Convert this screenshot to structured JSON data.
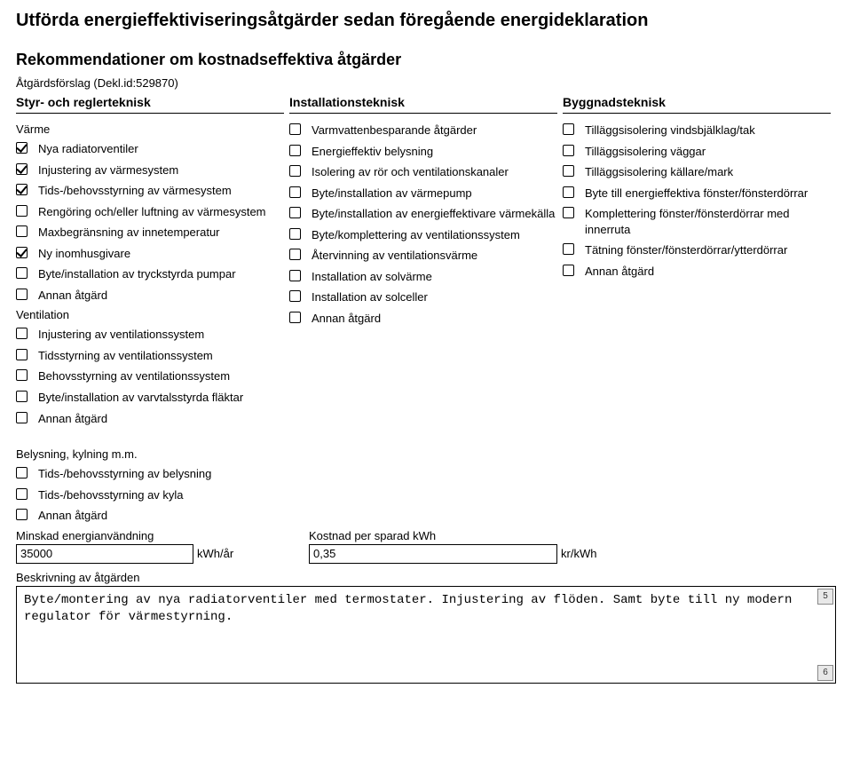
{
  "title": "Utförda energieffektiviseringsåtgärder sedan föregående energideklaration",
  "subtitle": "Rekommendationer om kostnadseffektiva åtgärder",
  "proposal_line": "Åtgärdsförslag (Dekl.id:529870)",
  "columns": {
    "col1": {
      "header": "Styr- och reglerteknisk",
      "groups": [
        {
          "heading": "Värme",
          "items": [
            {
              "label": "Nya radiatorventiler",
              "checked": true
            },
            {
              "label": "Injustering av värmesystem",
              "checked": true
            },
            {
              "label": "Tids-/behovsstyrning av värmesystem",
              "checked": true
            },
            {
              "label": "Rengöring och/eller luftning av värmesystem",
              "checked": false
            },
            {
              "label": "Maxbegränsning av innetemperatur",
              "checked": false
            },
            {
              "label": "Ny inomhusgivare",
              "checked": true
            },
            {
              "label": "Byte/installation av tryckstyrda pumpar",
              "checked": false
            },
            {
              "label": "Annan åtgärd",
              "checked": false
            }
          ]
        },
        {
          "heading": "Ventilation",
          "items": [
            {
              "label": "Injustering av ventilationssystem",
              "checked": false
            },
            {
              "label": "Tidsstyrning av ventilationssystem",
              "checked": false
            },
            {
              "label": "Behovsstyrning av ventilationssystem",
              "checked": false
            },
            {
              "label": "Byte/installation av varvtalsstyrda fläktar",
              "checked": false
            },
            {
              "label": "Annan åtgärd",
              "checked": false
            }
          ]
        }
      ]
    },
    "col2": {
      "header": "Installationsteknisk",
      "items": [
        {
          "label": "Varmvattenbesparande åtgärder",
          "checked": false
        },
        {
          "label": "Energieffektiv belysning",
          "checked": false
        },
        {
          "label": "Isolering av rör och ventilationskanaler",
          "checked": false
        },
        {
          "label": "Byte/installation av värmepump",
          "checked": false
        },
        {
          "label": "Byte/installation av energieffektivare värmekälla",
          "checked": false
        },
        {
          "label": "Byte/komplettering av ventilationssystem",
          "checked": false
        },
        {
          "label": "Återvinning av ventilationsvärme",
          "checked": false
        },
        {
          "label": "Installation av solvärme",
          "checked": false
        },
        {
          "label": "Installation av solceller",
          "checked": false
        },
        {
          "label": "Annan åtgärd",
          "checked": false
        }
      ]
    },
    "col3": {
      "header": "Byggnadsteknisk",
      "items": [
        {
          "label": "Tilläggsisolering vindsbjälklag/tak",
          "checked": false
        },
        {
          "label": "Tilläggsisolering väggar",
          "checked": false
        },
        {
          "label": "Tilläggsisolering källare/mark",
          "checked": false
        },
        {
          "label": "Byte till energieffektiva fönster/fönsterdörrar",
          "checked": false
        },
        {
          "label": "Komplettering fönster/fönsterdörrar med innerruta",
          "checked": false
        },
        {
          "label": "Tätning fönster/fönsterdörrar/ytterdörrar",
          "checked": false
        },
        {
          "label": "Annan åtgärd",
          "checked": false
        }
      ]
    }
  },
  "bottom": {
    "heading": "Belysning, kylning m.m.",
    "items": [
      {
        "label": "Tids-/behovsstyrning av belysning",
        "checked": false
      },
      {
        "label": "Tids-/behovsstyrning av kyla",
        "checked": false
      },
      {
        "label": "Annan åtgärd",
        "checked": false
      }
    ],
    "field1_label": "Minskad energianvändning",
    "field1_value": "35000",
    "field1_unit": "kWh/år",
    "field2_label": "Kostnad per sparad kWh",
    "field2_value": "0,35",
    "field2_unit": "kr/kWh",
    "desc_label": "Beskrivning av åtgärden",
    "desc_text": "Byte/montering av nya radiatorventiler med termostater. Injustering av flöden. Samt byte till ny modern regulator för värmestyrning."
  },
  "page_up": "5",
  "page_down": "6"
}
